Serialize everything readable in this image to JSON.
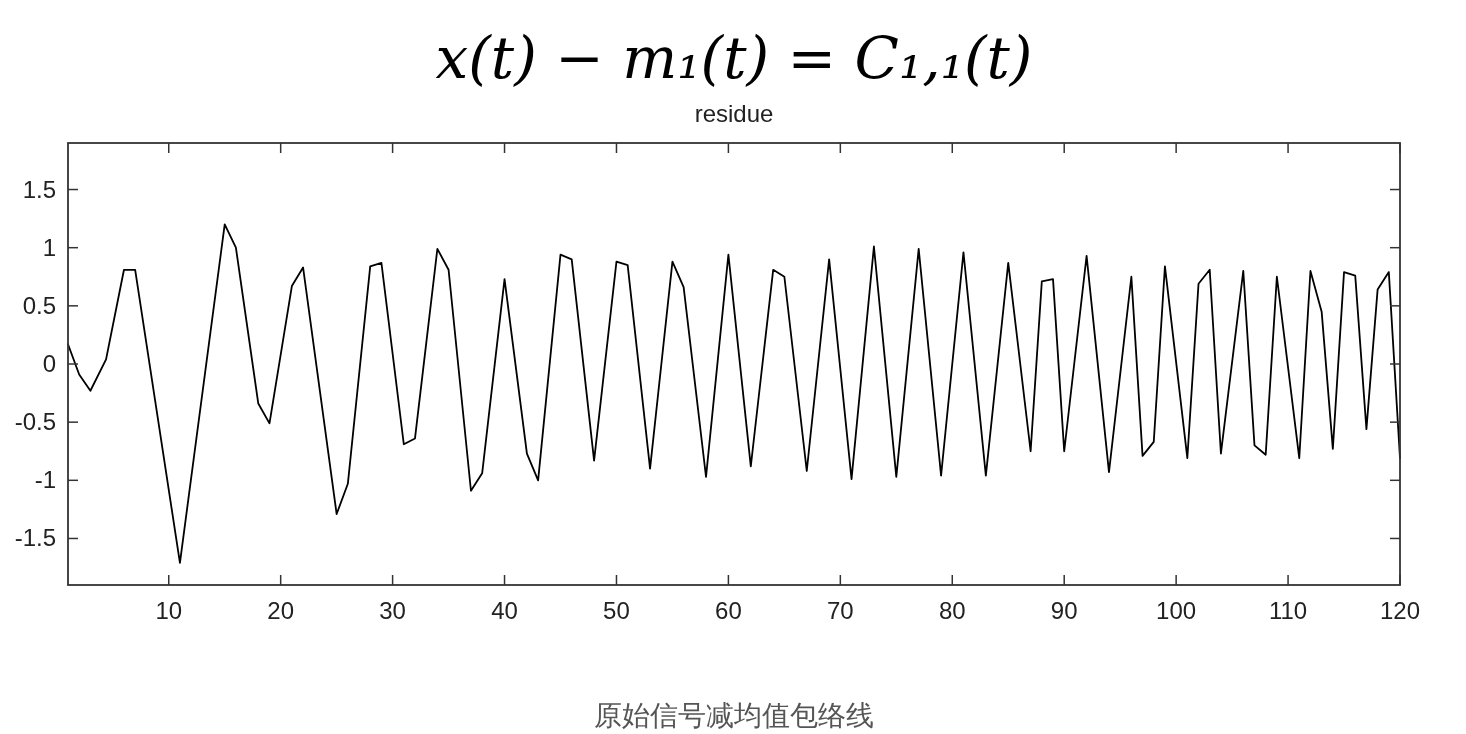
{
  "chart_data": {
    "type": "line",
    "title": "x(t) − m₁(t) = C₁,₁(t)",
    "subtitle": "residue",
    "annotations": [
      "原始信号减均值包络线"
    ],
    "x": [
      1,
      2,
      3,
      4.4,
      6,
      7,
      11,
      15,
      16,
      18,
      19,
      21,
      22,
      25,
      26,
      28,
      29,
      31,
      32,
      34,
      35,
      37,
      38,
      40,
      42,
      43,
      45,
      46,
      48,
      50,
      51,
      53,
      55,
      56,
      58,
      60,
      62,
      64,
      65,
      67,
      69,
      71,
      73,
      75,
      77,
      79,
      81,
      83,
      85,
      87,
      88,
      89,
      90,
      92,
      94,
      96,
      97,
      98,
      99,
      101,
      102,
      103,
      104,
      106,
      107,
      108,
      109,
      111,
      112,
      113,
      114,
      115,
      116,
      117,
      118,
      119,
      120
    ],
    "series": [
      {
        "color": "#000000",
        "values": [
          0.17,
          -0.09,
          -0.23,
          0.04,
          0.81,
          0.81,
          -1.71,
          1.2,
          1.0,
          -0.34,
          -0.51,
          0.67,
          0.83,
          -1.29,
          -1.03,
          0.84,
          0.87,
          -0.69,
          -0.64,
          0.99,
          0.81,
          -1.09,
          -0.94,
          0.73,
          -0.77,
          -1.0,
          0.94,
          0.9,
          -0.83,
          0.88,
          0.85,
          -0.9,
          0.88,
          0.66,
          -0.97,
          0.94,
          -0.88,
          0.81,
          0.75,
          -0.92,
          0.9,
          -0.99,
          1.01,
          -0.97,
          0.99,
          -0.96,
          0.96,
          -0.96,
          0.87,
          -0.75,
          0.71,
          0.73,
          -0.75,
          0.93,
          -0.93,
          0.75,
          -0.79,
          -0.67,
          0.84,
          -0.81,
          0.69,
          0.81,
          -0.77,
          0.8,
          -0.7,
          -0.78,
          0.75,
          -0.81,
          0.8,
          0.45,
          -0.73,
          0.79,
          0.76,
          -0.56,
          0.64,
          0.79,
          -0.81
        ]
      }
    ],
    "xlim": [
      1,
      120
    ],
    "ylim": [
      -1.9,
      1.9
    ],
    "xticks": [
      10,
      20,
      30,
      40,
      50,
      60,
      70,
      80,
      90,
      100,
      110,
      120
    ],
    "yticks": [
      -1.5,
      -1,
      -0.5,
      0,
      0.5,
      1,
      1.5
    ]
  }
}
